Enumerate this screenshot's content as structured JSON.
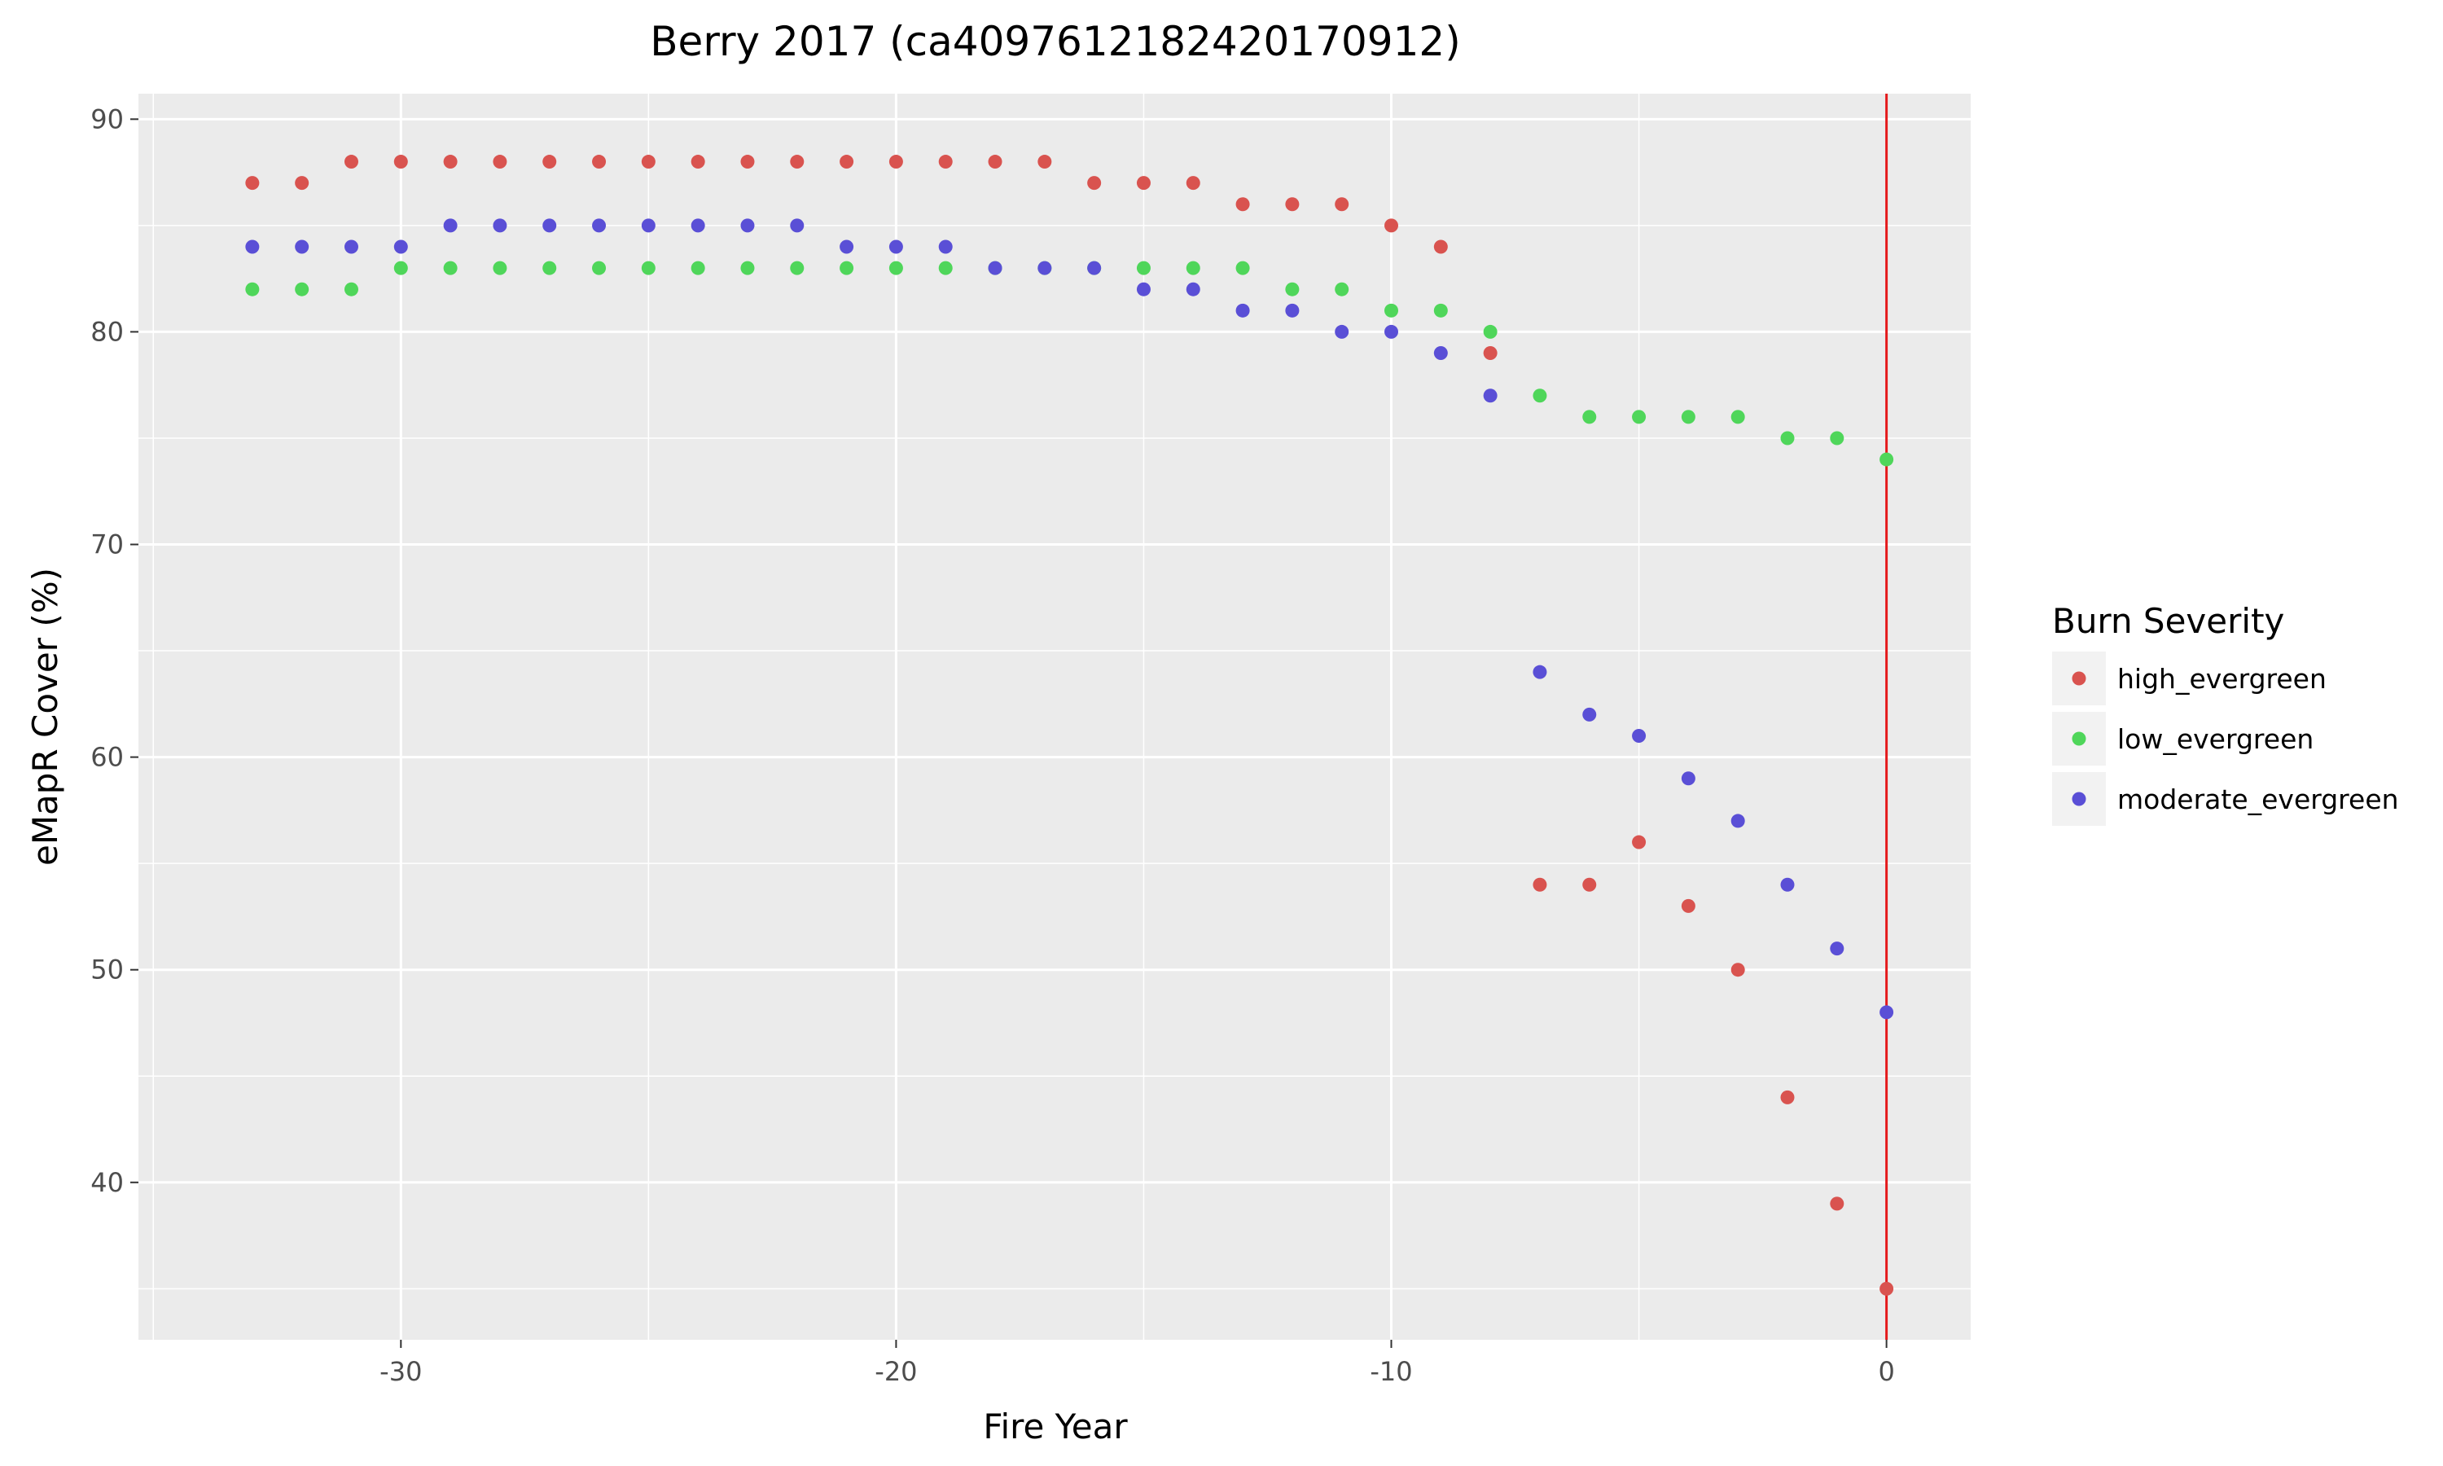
{
  "chart_data": {
    "type": "scatter",
    "title": "Berry 2017 (ca4097612182420170912)",
    "xlabel": "Fire Year",
    "ylabel": "eMapR Cover (%)",
    "xlim": [
      -35.3,
      1.7
    ],
    "ylim": [
      32.6,
      91.2
    ],
    "x_ticks": [
      -30,
      -20,
      -10,
      0
    ],
    "x_tick_labels": [
      "-30",
      "-20",
      "-10",
      "0"
    ],
    "y_ticks": [
      40,
      50,
      60,
      70,
      80,
      90
    ],
    "y_tick_labels": [
      "40",
      "50",
      "60",
      "70",
      "80",
      "90"
    ],
    "grid": true,
    "vline": {
      "x": 0,
      "color": "#e41a1c"
    },
    "legend": {
      "title": "Burn Severity",
      "position": "right"
    },
    "series": [
      {
        "name": "high_evergreen",
        "color": "#d9534f",
        "x": [
          -33,
          -32,
          -31,
          -30,
          -29,
          -28,
          -27,
          -26,
          -25,
          -24,
          -23,
          -22,
          -21,
          -20,
          -19,
          -18,
          -17,
          -16,
          -15,
          -14,
          -13,
          -12,
          -11,
          -10,
          -9,
          -8,
          -7,
          -6,
          -5,
          -4,
          -3,
          -2,
          -1,
          0
        ],
        "y": [
          87,
          87,
          88,
          88,
          88,
          88,
          88,
          88,
          88,
          88,
          88,
          88,
          88,
          88,
          88,
          88,
          88,
          87,
          87,
          87,
          86,
          86,
          86,
          85,
          84,
          79,
          54,
          54,
          56,
          53,
          50,
          44,
          39,
          35
        ]
      },
      {
        "name": "low_evergreen",
        "color": "#4fd65a",
        "x": [
          -33,
          -32,
          -31,
          -30,
          -29,
          -28,
          -27,
          -26,
          -25,
          -24,
          -23,
          -22,
          -21,
          -20,
          -19,
          -18,
          -17,
          -16,
          -15,
          -14,
          -13,
          -12,
          -11,
          -10,
          -9,
          -8,
          -7,
          -6,
          -5,
          -4,
          -3,
          -2,
          -1,
          0
        ],
        "y": [
          82,
          82,
          82,
          83,
          83,
          83,
          83,
          83,
          83,
          83,
          83,
          83,
          83,
          83,
          83,
          83,
          83,
          83,
          83,
          83,
          83,
          82,
          82,
          81,
          81,
          80,
          77,
          76,
          76,
          76,
          76,
          75,
          75,
          74
        ]
      },
      {
        "name": "moderate_evergreen",
        "color": "#5a4fd6",
        "x": [
          -33,
          -32,
          -31,
          -30,
          -29,
          -28,
          -27,
          -26,
          -25,
          -24,
          -23,
          -22,
          -21,
          -20,
          -19,
          -18,
          -17,
          -16,
          -15,
          -14,
          -13,
          -12,
          -11,
          -10,
          -9,
          -8,
          -7,
          -6,
          -5,
          -4,
          -3,
          -2,
          -1,
          0
        ],
        "y": [
          84,
          84,
          84,
          84,
          85,
          85,
          85,
          85,
          85,
          85,
          85,
          85,
          84,
          84,
          84,
          83,
          83,
          83,
          82,
          82,
          81,
          81,
          80,
          80,
          79,
          77,
          64,
          62,
          61,
          59,
          57,
          54,
          51,
          48
        ]
      }
    ]
  }
}
